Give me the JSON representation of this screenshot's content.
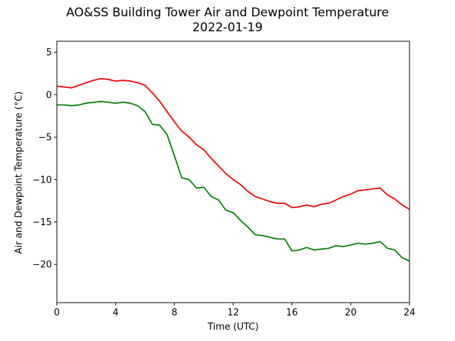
{
  "chart_data": {
    "type": "line",
    "title": "AO&SS Building Tower Air and Dewpoint Temperature",
    "subtitle": "2022-01-19",
    "xlabel": "Time (UTC)",
    "ylabel": "Air and Dewpoint Temperature (°C)",
    "xlim": [
      0,
      24
    ],
    "ylim": [
      -24.5,
      6.3
    ],
    "xticks": [
      0,
      4,
      8,
      12,
      16,
      20,
      24
    ],
    "yticks": [
      5,
      0,
      -5,
      -10,
      -15,
      -20
    ],
    "ytick_labels": [
      "5",
      "0",
      "−5",
      "−10",
      "−15",
      "−20"
    ],
    "grid": false,
    "series": [
      {
        "color": "#ff0000",
        "x": [
          0,
          0.5,
          1,
          1.5,
          2,
          2.5,
          3,
          3.5,
          4,
          4.5,
          5,
          5.5,
          6,
          6.5,
          7,
          7.5,
          8,
          8.5,
          9,
          9.5,
          10,
          10.5,
          11,
          11.5,
          12,
          12.5,
          13,
          13.5,
          14,
          14.5,
          15,
          15.5,
          16,
          16.5,
          17,
          17.5,
          18,
          18.5,
          19,
          19.5,
          20,
          20.5,
          21,
          21.5,
          22,
          22.5,
          23,
          23.5,
          24
        ],
        "values": [
          1.0,
          0.9,
          0.8,
          1.1,
          1.4,
          1.7,
          1.9,
          1.8,
          1.6,
          1.7,
          1.6,
          1.4,
          1.1,
          0.2,
          -0.8,
          -2.0,
          -3.2,
          -4.3,
          -5.0,
          -5.9,
          -6.5,
          -7.5,
          -8.4,
          -9.3,
          -10.0,
          -10.6,
          -11.4,
          -12.0,
          -12.3,
          -12.6,
          -12.8,
          -12.8,
          -13.3,
          -13.2,
          -13.0,
          -13.2,
          -12.9,
          -12.8,
          -12.4,
          -12.0,
          -11.7,
          -11.3,
          -11.2,
          -11.1,
          -11.0,
          -11.8,
          -12.3,
          -13.0,
          -13.5
        ]
      },
      {
        "color": "#008000",
        "x": [
          0,
          0.5,
          1,
          1.5,
          2,
          2.5,
          3,
          3.5,
          4,
          4.5,
          5,
          5.5,
          6,
          6.5,
          7,
          7.5,
          8,
          8.5,
          9,
          9.5,
          10,
          10.5,
          11,
          11.5,
          12,
          12.5,
          13,
          13.5,
          14,
          14.5,
          15,
          15.5,
          16,
          16.5,
          17,
          17.5,
          18,
          18.5,
          19,
          19.5,
          20,
          20.5,
          21,
          21.5,
          22,
          22.5,
          23,
          23.5,
          24
        ],
        "values": [
          -1.2,
          -1.2,
          -1.3,
          -1.2,
          -1.0,
          -0.9,
          -0.8,
          -0.9,
          -1.0,
          -0.9,
          -1.0,
          -1.3,
          -2.0,
          -3.5,
          -3.6,
          -4.7,
          -7.2,
          -9.8,
          -10.0,
          -11.0,
          -10.9,
          -12.0,
          -12.4,
          -13.6,
          -13.9,
          -14.8,
          -15.6,
          -16.5,
          -16.6,
          -16.8,
          -17.0,
          -17.0,
          -18.4,
          -18.3,
          -18.0,
          -18.3,
          -18.2,
          -18.1,
          -17.8,
          -17.9,
          -17.7,
          -17.5,
          -17.6,
          -17.5,
          -17.3,
          -18.1,
          -18.3,
          -19.2,
          -19.6
        ]
      }
    ]
  }
}
